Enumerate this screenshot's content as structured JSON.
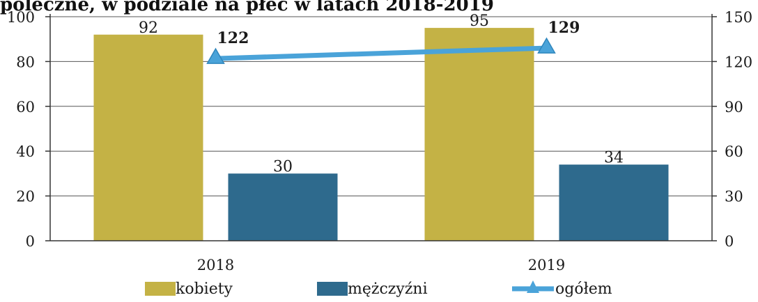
{
  "title": "poleczne, w podziale na płeć w latach 2018-2019",
  "chart_data": {
    "type": "bar",
    "categories": [
      "2018",
      "2019"
    ],
    "series": [
      {
        "name": "kobiety",
        "kind": "bar",
        "axis": "left",
        "values": [
          92,
          95
        ],
        "color": "#c4b245"
      },
      {
        "name": "mężczyźni",
        "kind": "bar",
        "axis": "left",
        "values": [
          30,
          34
        ],
        "color": "#2e6a8d"
      },
      {
        "name": "ogółem",
        "kind": "line",
        "axis": "right",
        "values": [
          122,
          129
        ],
        "color": "#4aa3d9"
      }
    ],
    "ylim_left": [
      0,
      100
    ],
    "yticks_left": [
      0,
      20,
      40,
      60,
      80,
      100
    ],
    "ylim_right": [
      0,
      150
    ],
    "yticks_right": [
      0,
      30,
      60,
      90,
      120,
      150
    ],
    "grid": true,
    "legend_position": "bottom"
  }
}
